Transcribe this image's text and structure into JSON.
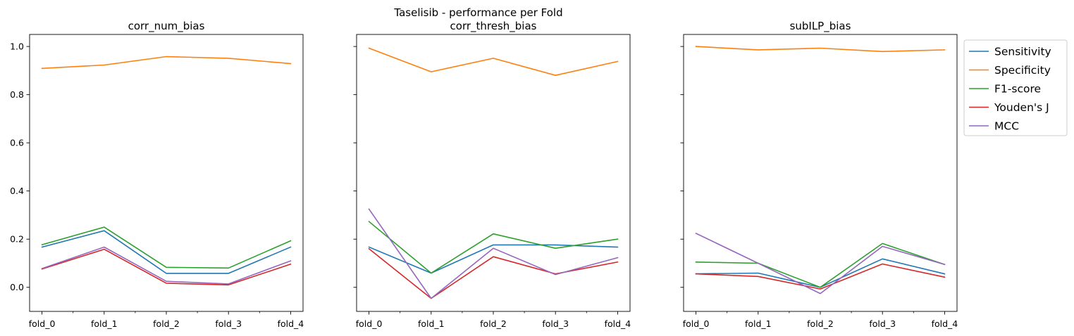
{
  "chart_data": {
    "type": "line",
    "suptitle": "Taselisib - performance per Fold",
    "categories": [
      "fold_0",
      "fold_1",
      "fold_2",
      "fold_3",
      "fold_4"
    ],
    "ylim": [
      -0.1,
      1.05
    ],
    "yticks": [
      0.0,
      0.2,
      0.4,
      0.6,
      0.8,
      1.0
    ],
    "ytick_labels": [
      "0.0",
      "0.2",
      "0.4",
      "0.6",
      "0.8",
      "1.0"
    ],
    "shared_y": true,
    "grid": false,
    "legend": {
      "placement": "outside-right-top",
      "entries": [
        {
          "name": "Sensitivity",
          "color": "#1f77b4"
        },
        {
          "name": "Specificity",
          "color": "#ff7f0e"
        },
        {
          "name": "F1-score",
          "color": "#2ca02c"
        },
        {
          "name": "Youden's J",
          "color": "#d62728"
        },
        {
          "name": "MCC",
          "color": "#9467bd"
        }
      ]
    },
    "panels": [
      {
        "title": "corr_num_bias",
        "series": [
          {
            "name": "Sensitivity",
            "color": "#1f77b4",
            "values": [
              0.167,
              0.235,
              0.058,
              0.058,
              0.167
            ]
          },
          {
            "name": "Specificity",
            "color": "#ff7f0e",
            "values": [
              0.909,
              0.923,
              0.958,
              0.951,
              0.929
            ]
          },
          {
            "name": "F1-score",
            "color": "#2ca02c",
            "values": [
              0.177,
              0.25,
              0.083,
              0.08,
              0.193
            ]
          },
          {
            "name": "Youden's J",
            "color": "#d62728",
            "values": [
              0.076,
              0.158,
              0.017,
              0.01,
              0.096
            ]
          },
          {
            "name": "MCC",
            "color": "#9467bd",
            "values": [
              0.078,
              0.167,
              0.025,
              0.014,
              0.11
            ]
          }
        ]
      },
      {
        "title": "corr_thresh_bias",
        "series": [
          {
            "name": "Sensitivity",
            "color": "#1f77b4",
            "values": [
              0.167,
              0.059,
              0.176,
              0.176,
              0.167
            ]
          },
          {
            "name": "Specificity",
            "color": "#ff7f0e",
            "values": [
              0.993,
              0.895,
              0.951,
              0.88,
              0.938
            ]
          },
          {
            "name": "F1-score",
            "color": "#2ca02c",
            "values": [
              0.273,
              0.059,
              0.222,
              0.162,
              0.2
            ]
          },
          {
            "name": "Youden's J",
            "color": "#d62728",
            "values": [
              0.16,
              -0.046,
              0.127,
              0.056,
              0.105
            ]
          },
          {
            "name": "MCC",
            "color": "#9467bd",
            "values": [
              0.325,
              -0.046,
              0.162,
              0.053,
              0.123
            ]
          }
        ]
      },
      {
        "title": "subILP_bias",
        "series": [
          {
            "name": "Sensitivity",
            "color": "#1f77b4",
            "values": [
              0.056,
              0.059,
              0.0,
              0.118,
              0.056
            ]
          },
          {
            "name": "Specificity",
            "color": "#ff7f0e",
            "values": [
              1.0,
              0.986,
              0.993,
              0.979,
              0.986
            ]
          },
          {
            "name": "F1-score",
            "color": "#2ca02c",
            "values": [
              0.105,
              0.1,
              0.0,
              0.182,
              0.095
            ]
          },
          {
            "name": "Youden's J",
            "color": "#d62728",
            "values": [
              0.056,
              0.045,
              -0.007,
              0.097,
              0.042
            ]
          },
          {
            "name": "MCC",
            "color": "#9467bd",
            "values": [
              0.224,
              0.1,
              -0.026,
              0.17,
              0.095
            ]
          }
        ]
      }
    ]
  }
}
